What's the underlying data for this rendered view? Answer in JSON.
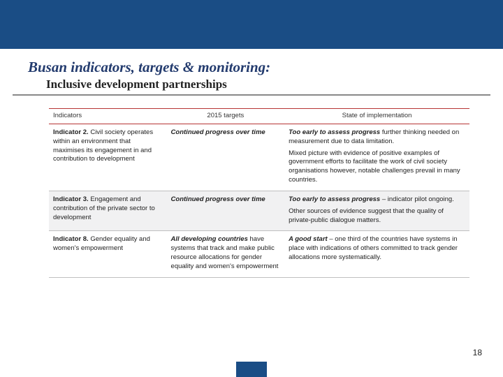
{
  "colors": {
    "header_bar": "#1a4d85",
    "title_color": "#233b6e",
    "rule_red": "#b73434",
    "row_shade": "#f1f1f2",
    "row_border": "#bfbfbf"
  },
  "title": {
    "main": "Busan indicators, targets & monitoring:",
    "sub": "Inclusive development partnerships"
  },
  "table": {
    "headers": [
      "Indicators",
      "2015 targets",
      "State of implementation"
    ],
    "rows": [
      {
        "shaded": false,
        "indicator_bold": "Indicator 2.",
        "indicator_rest": " Civil society operates within an environment that maximises its engagement in and contribution to development",
        "target_bi": "Continued progress over time",
        "target_rest": "",
        "state_line1_bi": "Too early to assess progress",
        "state_line1_rest": "   further thinking needed on measurement due to data limitation.",
        "state_line2": "Mixed picture with evidence of positive examples of government efforts to facilitate the work of civil society organisations however, notable challenges prevail in many countries."
      },
      {
        "shaded": true,
        "indicator_bold": "Indicator 3.",
        "indicator_rest": " Engagement and contribution of the private sector to development",
        "target_bi": "Continued progress over time",
        "target_rest": "",
        "state_line1_bi": "Too early to assess progress",
        "state_line1_rest": " – indicator pilot ongoing.",
        "state_line2": "Other sources of evidence suggest that the quality of private-public dialogue matters."
      },
      {
        "shaded": false,
        "indicator_bold": "Indicator 8.",
        "indicator_rest": " Gender equality and women's empowerment",
        "target_bi": "All developing countries",
        "target_rest": " have systems that track and make public resource allocations for gender equality and women's empowerment",
        "state_line1_bi": "A good start",
        "state_line1_rest": " – one third of the countries have systems in place with indications of others committed to track gender allocations more systematically.",
        "state_line2": ""
      }
    ]
  },
  "page_number": "18"
}
